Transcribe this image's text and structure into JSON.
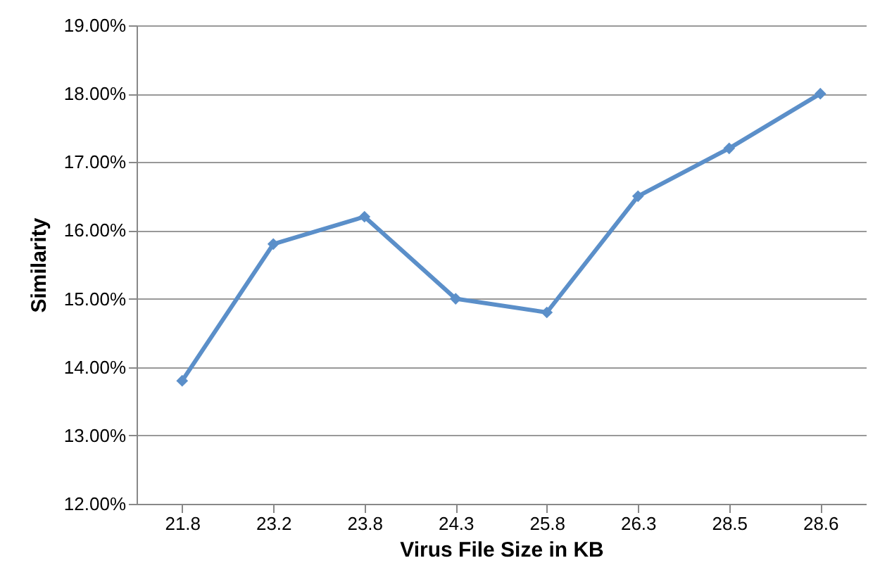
{
  "chart_data": {
    "type": "line",
    "xlabel": "Virus File Size in KB",
    "ylabel": "Similarity",
    "categories": [
      "21.8",
      "23.2",
      "23.8",
      "24.3",
      "25.8",
      "26.3",
      "28.5",
      "28.6"
    ],
    "series": [
      {
        "color": "#5b8fc9",
        "values": [
          13.8,
          15.8,
          16.2,
          15.0,
          14.8,
          16.5,
          17.2,
          18.0
        ]
      }
    ],
    "ylim": [
      12,
      19
    ],
    "yticks": [
      {
        "value": 12,
        "label": "12.00%"
      },
      {
        "value": 13,
        "label": "13.00%"
      },
      {
        "value": 14,
        "label": "14.00%"
      },
      {
        "value": 15,
        "label": "15.00%"
      },
      {
        "value": 16,
        "label": "16.00%"
      },
      {
        "value": 17,
        "label": "17.00%"
      },
      {
        "value": 18,
        "label": "18.00%"
      },
      {
        "value": 19,
        "label": "19.00%"
      }
    ],
    "grid": "y",
    "marker": "diamond",
    "line_style": "solid"
  }
}
